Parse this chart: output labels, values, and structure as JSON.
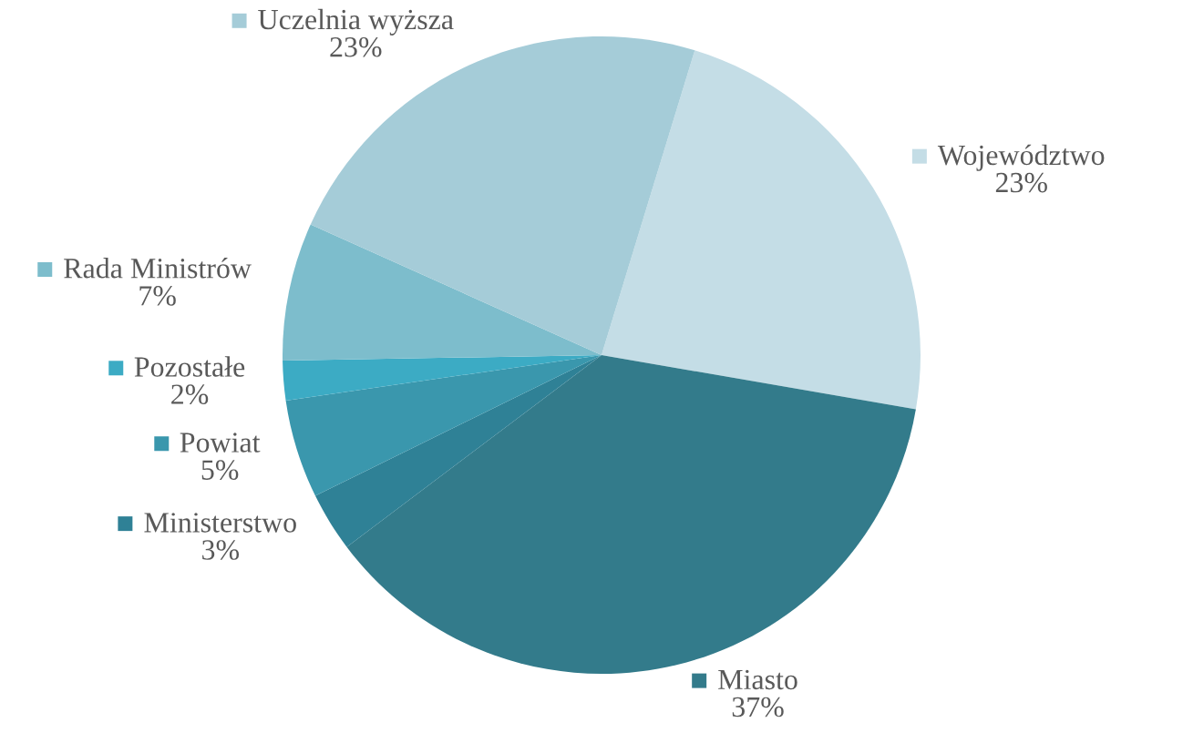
{
  "chart_data": {
    "type": "pie",
    "categories": [
      "Województwo",
      "Miasto",
      "Ministerstwo",
      "Powiat",
      "Pozostałe",
      "Rada Ministrów",
      "Uczelnia wyższa"
    ],
    "values": [
      23,
      37,
      3,
      5,
      2,
      7,
      23
    ],
    "colors": [
      "#c4dde6",
      "#337b8b",
      "#2f8196",
      "#3a97ad",
      "#3cabc4",
      "#7dbdcc",
      "#a5ccd8"
    ],
    "value_labels": [
      "23%",
      "37%",
      "3%",
      "5%",
      "2%",
      "7%",
      "23%"
    ],
    "legend": "left"
  }
}
